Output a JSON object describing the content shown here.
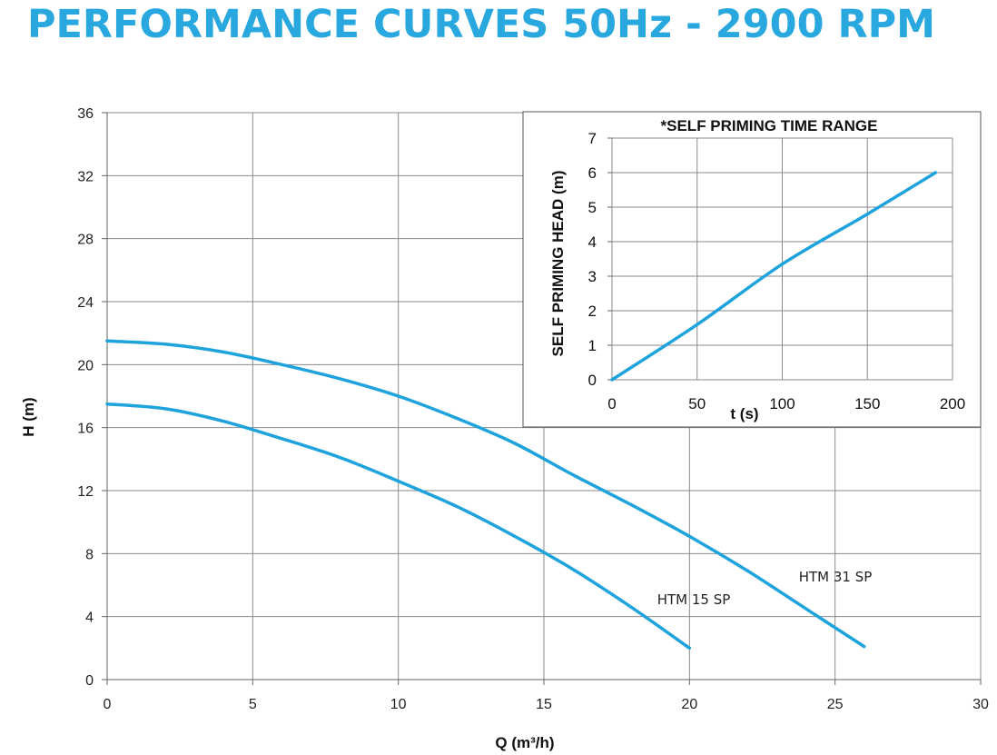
{
  "page": {
    "title": "PERFORMANCE CURVES 50Hz - 2900 RPM",
    "title_color": "#29a8e0"
  },
  "chart_data": [
    {
      "type": "line",
      "title": "",
      "xlabel": "Q (m³/h)",
      "ylabel": "H (m)",
      "xlim": [
        0,
        30
      ],
      "ylim": [
        0,
        36
      ],
      "xticks": [
        0,
        5,
        10,
        15,
        20,
        25,
        30
      ],
      "yticks": [
        0,
        4,
        8,
        12,
        16,
        20,
        24,
        28,
        32,
        36
      ],
      "grid": true,
      "line_color": "#1fa3dc",
      "series": [
        {
          "name": "HTM 31 SP",
          "x": [
            0,
            2,
            4,
            6,
            8,
            10,
            12,
            14,
            16,
            18,
            20,
            22,
            24,
            26
          ],
          "y": [
            21.5,
            21.3,
            20.8,
            20.0,
            19.1,
            18.0,
            16.6,
            15.0,
            13.0,
            11.1,
            9.1,
            6.9,
            4.5,
            2.1
          ]
        },
        {
          "name": "HTM 15 SP",
          "x": [
            0,
            2,
            4,
            6,
            8,
            10,
            12,
            14,
            16,
            18,
            20
          ],
          "y": [
            17.5,
            17.2,
            16.4,
            15.3,
            14.1,
            12.6,
            11.0,
            9.1,
            7.0,
            4.6,
            2.0
          ]
        }
      ]
    },
    {
      "type": "line",
      "title": "*SELF PRIMING TIME RANGE",
      "xlabel": "t (s)",
      "ylabel": "SELF PRIMING HEAD (m)",
      "xlim": [
        0,
        200
      ],
      "ylim": [
        0,
        7
      ],
      "xticks": [
        0,
        50,
        100,
        150,
        200
      ],
      "yticks": [
        0,
        1,
        2,
        3,
        4,
        5,
        6,
        7
      ],
      "grid": true,
      "line_color": "#1fa3dc",
      "series": [
        {
          "x": [
            0,
            50,
            100,
            150,
            190
          ],
          "y": [
            0,
            1.6,
            3.35,
            4.8,
            6.0
          ]
        }
      ]
    }
  ]
}
